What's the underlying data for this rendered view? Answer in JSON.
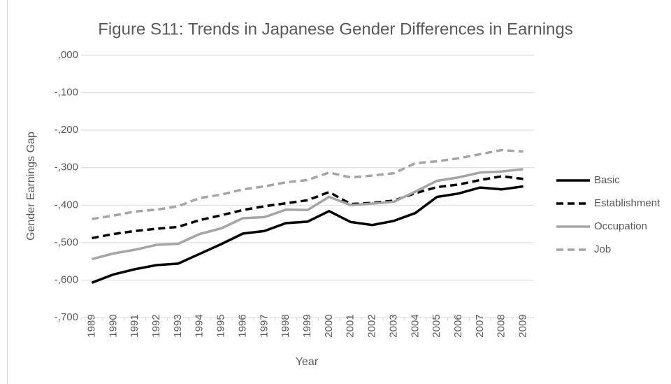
{
  "chart_data": {
    "type": "line",
    "title": "Figure S11: Trends in Japanese Gender Differences in Earnings",
    "x_label": "Year",
    "y_label": "Gender Earnings Gap",
    "categories": [
      "1989",
      "1990",
      "1991",
      "1992",
      "1993",
      "1994",
      "1995",
      "1996",
      "1997",
      "1998",
      "1999",
      "2000",
      "2001",
      "2002",
      "2003",
      "2004",
      "2005",
      "2006",
      "2007",
      "2008",
      "2009"
    ],
    "series": [
      {
        "name": "Basic",
        "color": "#000000",
        "dash": false,
        "values": [
          -0.607,
          -0.585,
          -0.571,
          -0.56,
          -0.556,
          -0.53,
          -0.504,
          -0.476,
          -0.469,
          -0.448,
          -0.444,
          -0.416,
          -0.445,
          -0.453,
          -0.442,
          -0.421,
          -0.378,
          -0.369,
          -0.353,
          -0.358,
          -0.35
        ]
      },
      {
        "name": "Establishment",
        "color": "#000000",
        "dash": true,
        "values": [
          -0.488,
          -0.477,
          -0.469,
          -0.463,
          -0.458,
          -0.44,
          -0.427,
          -0.413,
          -0.403,
          -0.395,
          -0.387,
          -0.365,
          -0.397,
          -0.394,
          -0.388,
          -0.368,
          -0.352,
          -0.345,
          -0.333,
          -0.323,
          -0.33
        ]
      },
      {
        "name": "Occupation",
        "color": "#a5a5a5",
        "dash": false,
        "values": [
          -0.544,
          -0.529,
          -0.519,
          -0.506,
          -0.503,
          -0.477,
          -0.462,
          -0.435,
          -0.432,
          -0.412,
          -0.413,
          -0.378,
          -0.4,
          -0.396,
          -0.391,
          -0.364,
          -0.335,
          -0.326,
          -0.313,
          -0.31,
          -0.304
        ]
      },
      {
        "name": "Job",
        "color": "#a5a5a5",
        "dash": true,
        "values": [
          -0.437,
          -0.428,
          -0.417,
          -0.412,
          -0.403,
          -0.381,
          -0.372,
          -0.358,
          -0.35,
          -0.339,
          -0.333,
          -0.313,
          -0.326,
          -0.321,
          -0.315,
          -0.288,
          -0.283,
          -0.275,
          -0.264,
          -0.253,
          -0.257
        ]
      }
    ],
    "ylim": [
      -0.7,
      0
    ],
    "yticks": [
      {
        "value": 0,
        "label": ",000"
      },
      {
        "value": -0.1,
        "label": "-,100"
      },
      {
        "value": -0.2,
        "label": "-,200"
      },
      {
        "value": -0.3,
        "label": "-,300"
      },
      {
        "value": -0.4,
        "label": "-,400"
      },
      {
        "value": -0.5,
        "label": "-,500"
      },
      {
        "value": -0.6,
        "label": "-,600"
      },
      {
        "value": -0.7,
        "label": "-,700"
      }
    ],
    "grid": true,
    "legend": "right"
  }
}
